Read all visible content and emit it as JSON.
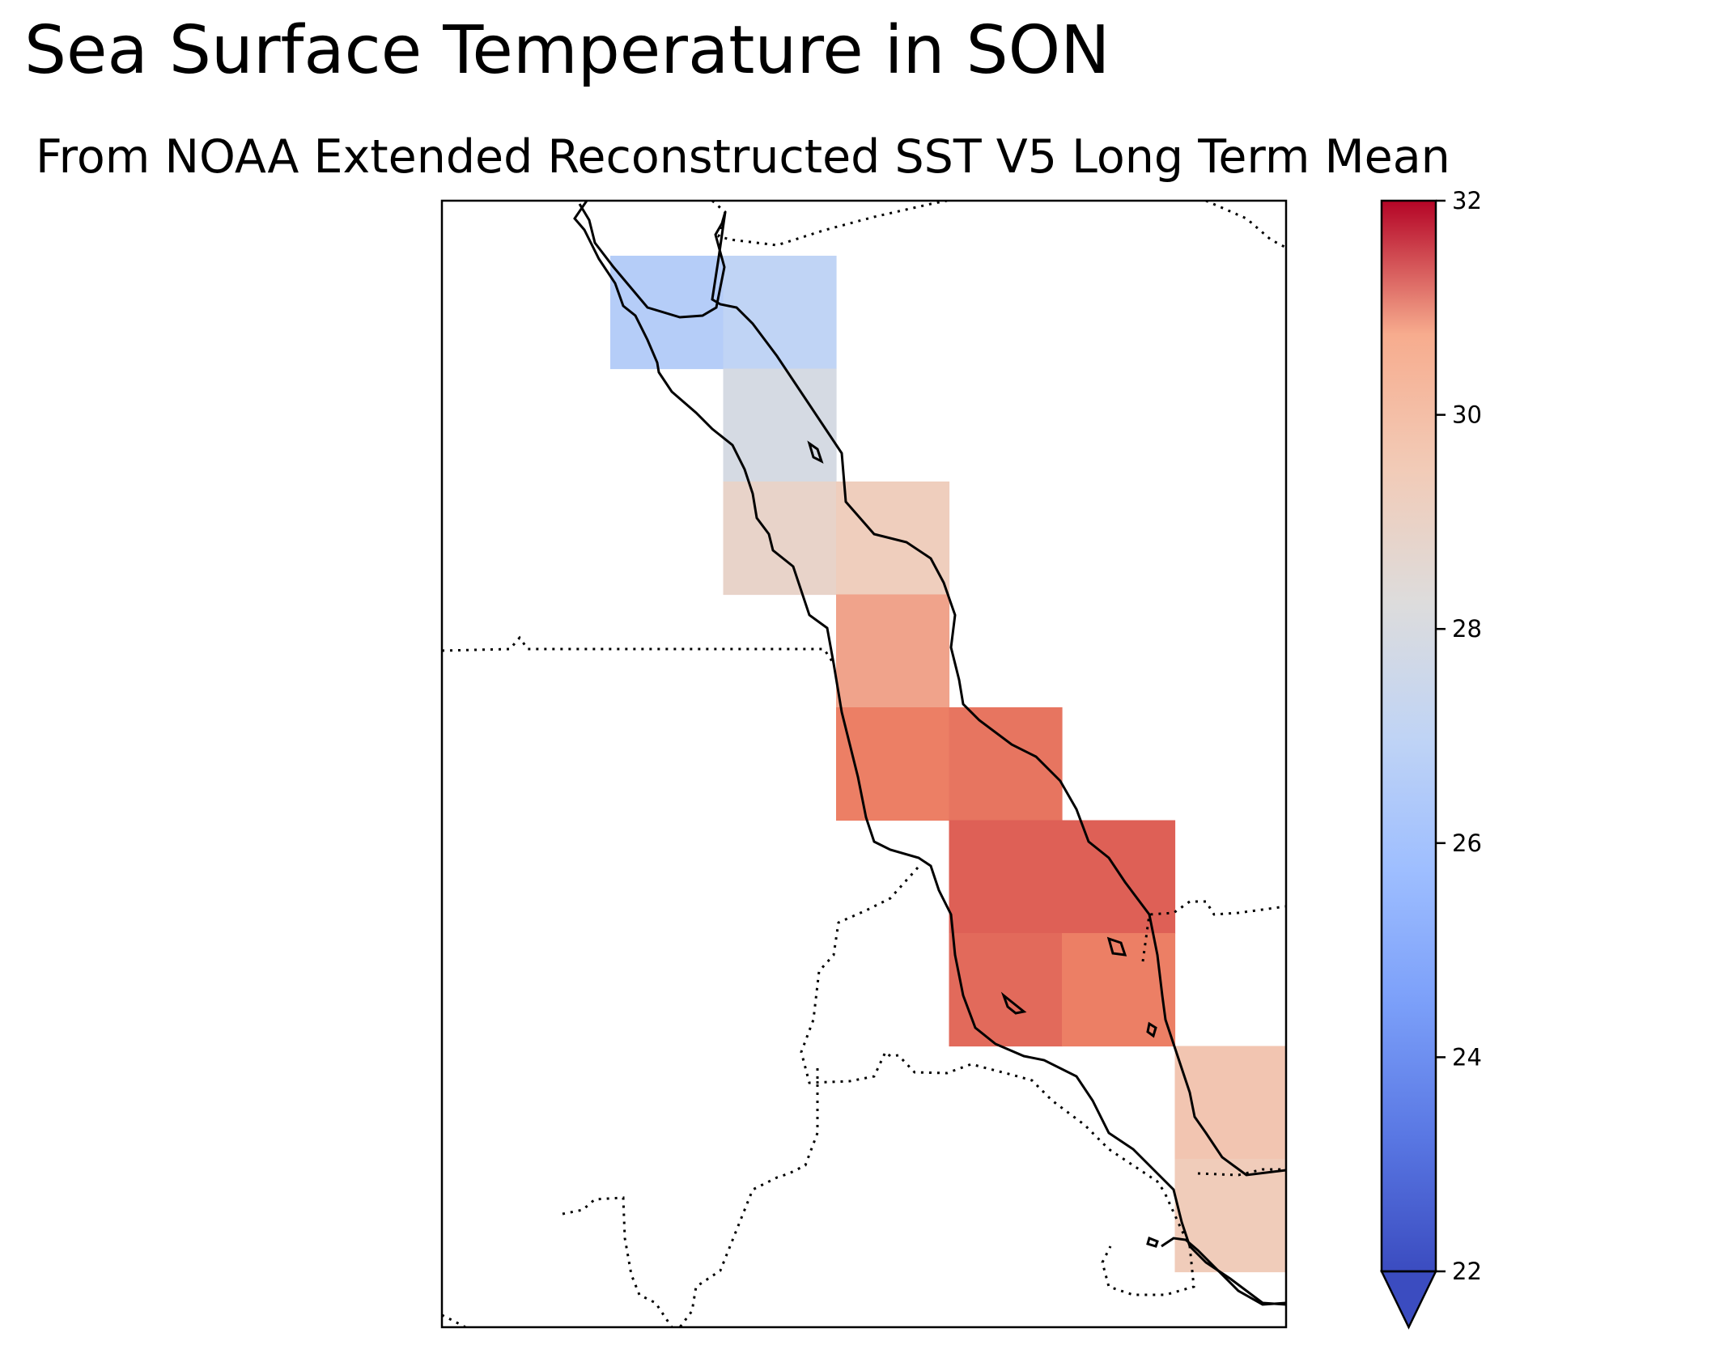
{
  "chart_data": {
    "type": "heatmap",
    "title": "Sea Surface Temperature in SON",
    "subtitle": "From NOAA Extended Reconstructed SST V5 Long Term Mean",
    "colormap": "coolwarm",
    "colorbar": {
      "vmin": 22,
      "vmax": 32,
      "ticks": [
        22,
        24,
        26,
        28,
        30,
        32
      ],
      "tick_labels": [
        "22",
        "24",
        "26",
        "28",
        "30",
        "32"
      ],
      "extend": "min",
      "placement": "right"
    },
    "cells": [
      {
        "row": 0,
        "col": 1,
        "value": 26.6
      },
      {
        "row": 0,
        "col": 2,
        "value": 27.0
      },
      {
        "row": 1,
        "col": 2,
        "value": 27.9
      },
      {
        "row": 2,
        "col": 2,
        "value": 28.9
      },
      {
        "row": 2,
        "col": 3,
        "value": 29.3
      },
      {
        "row": 3,
        "col": 3,
        "value": 30.2
      },
      {
        "row": 4,
        "col": 3,
        "value": 30.8
      },
      {
        "row": 4,
        "col": 4,
        "value": 30.9
      },
      {
        "row": 5,
        "col": 4,
        "value": 31.1
      },
      {
        "row": 5,
        "col": 5,
        "value": 31.1
      },
      {
        "row": 6,
        "col": 4,
        "value": 31.0
      },
      {
        "row": 6,
        "col": 5,
        "value": 30.8
      },
      {
        "row": 7,
        "col": 6,
        "value": 29.6
      },
      {
        "row": 8,
        "col": 6,
        "value": 29.4
      }
    ],
    "grid_lines": false
  }
}
